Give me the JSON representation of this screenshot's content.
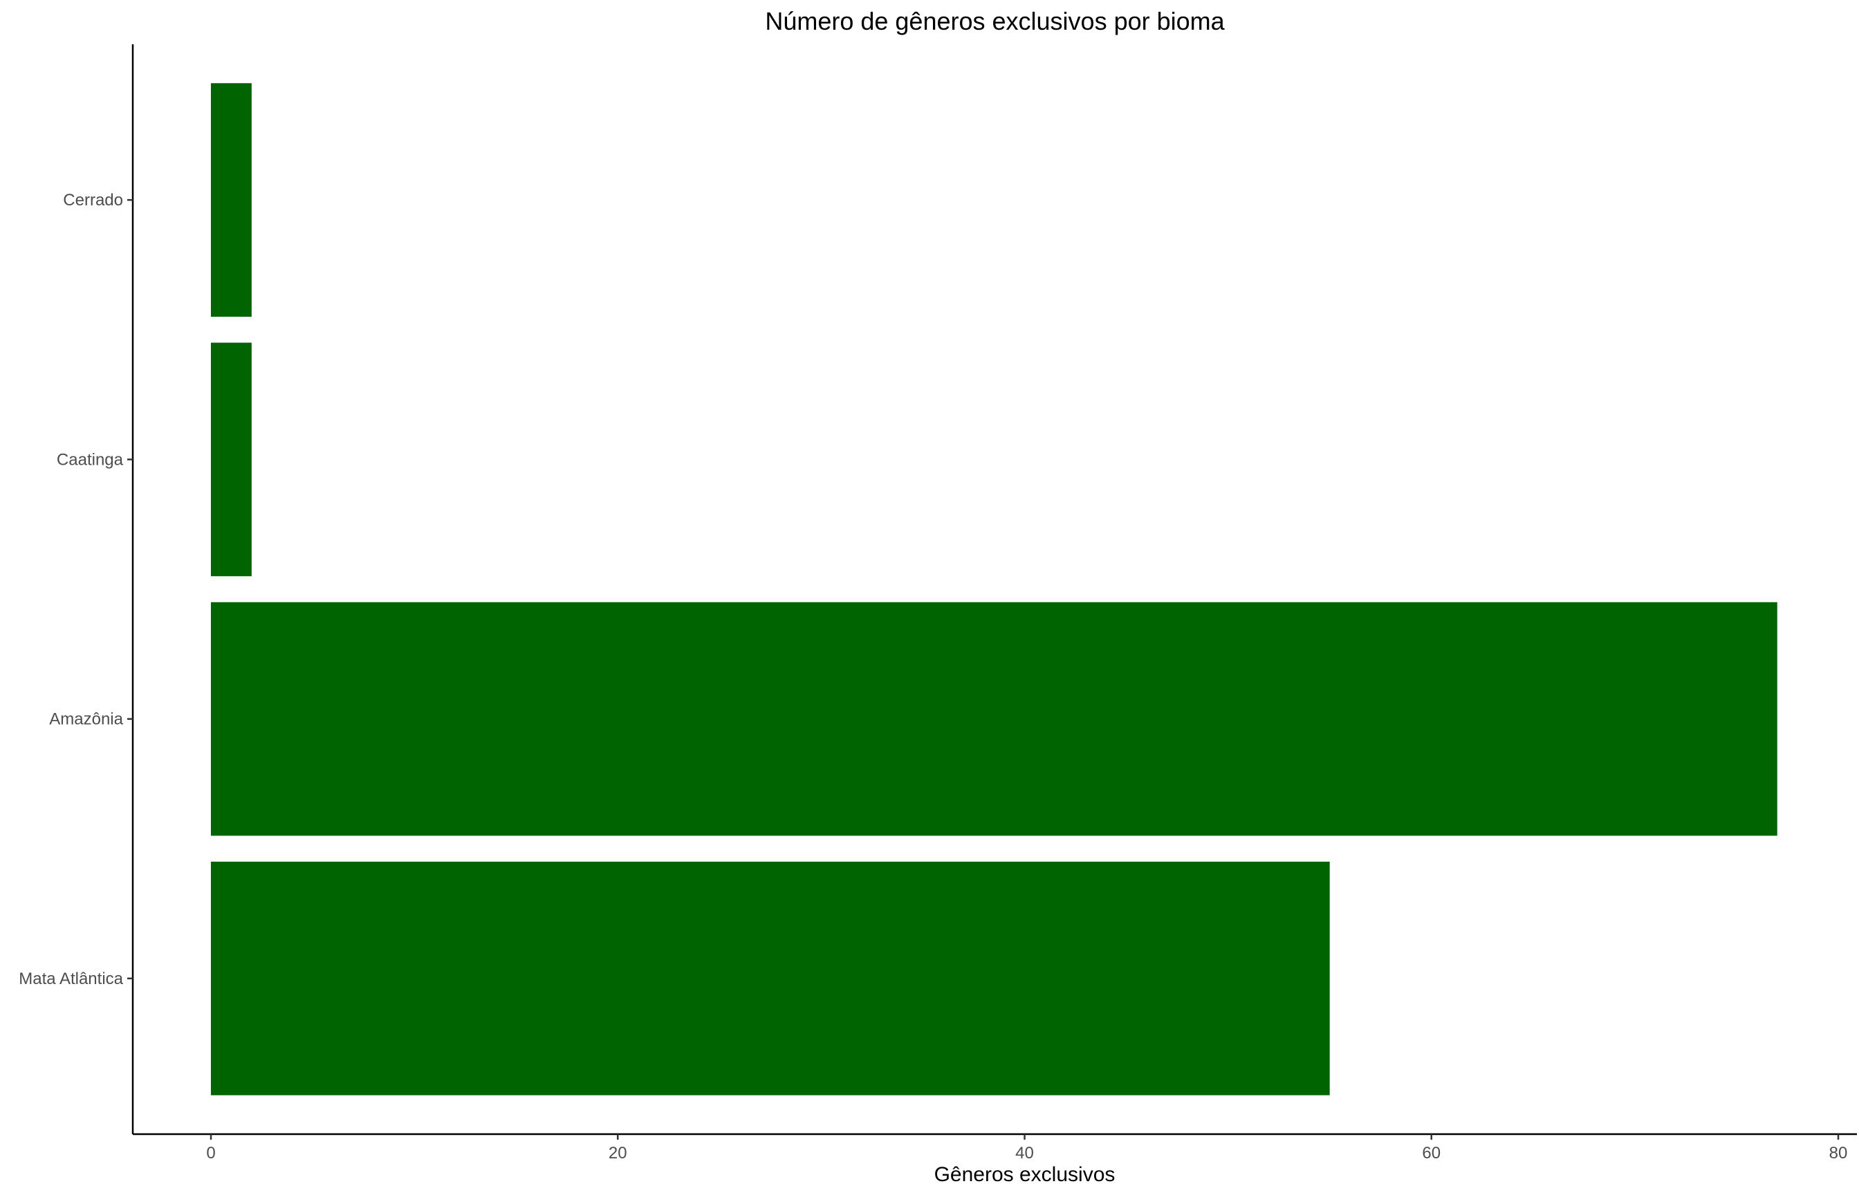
{
  "chart_data": {
    "type": "bar",
    "orientation": "horizontal",
    "title": "Número de gêneros exclusivos por bioma",
    "xlabel": "Gêneros exclusivos",
    "ylabel": "",
    "categories": [
      "Mata Atlântica",
      "Amazônia",
      "Caatinga",
      "Cerrado"
    ],
    "values": [
      55,
      77,
      2,
      2
    ],
    "xlim": [
      0,
      80
    ],
    "xticks": [
      "0",
      "20",
      "40",
      "60",
      "80"
    ],
    "grid": false,
    "legend": "none",
    "bar_color": "#006400"
  }
}
